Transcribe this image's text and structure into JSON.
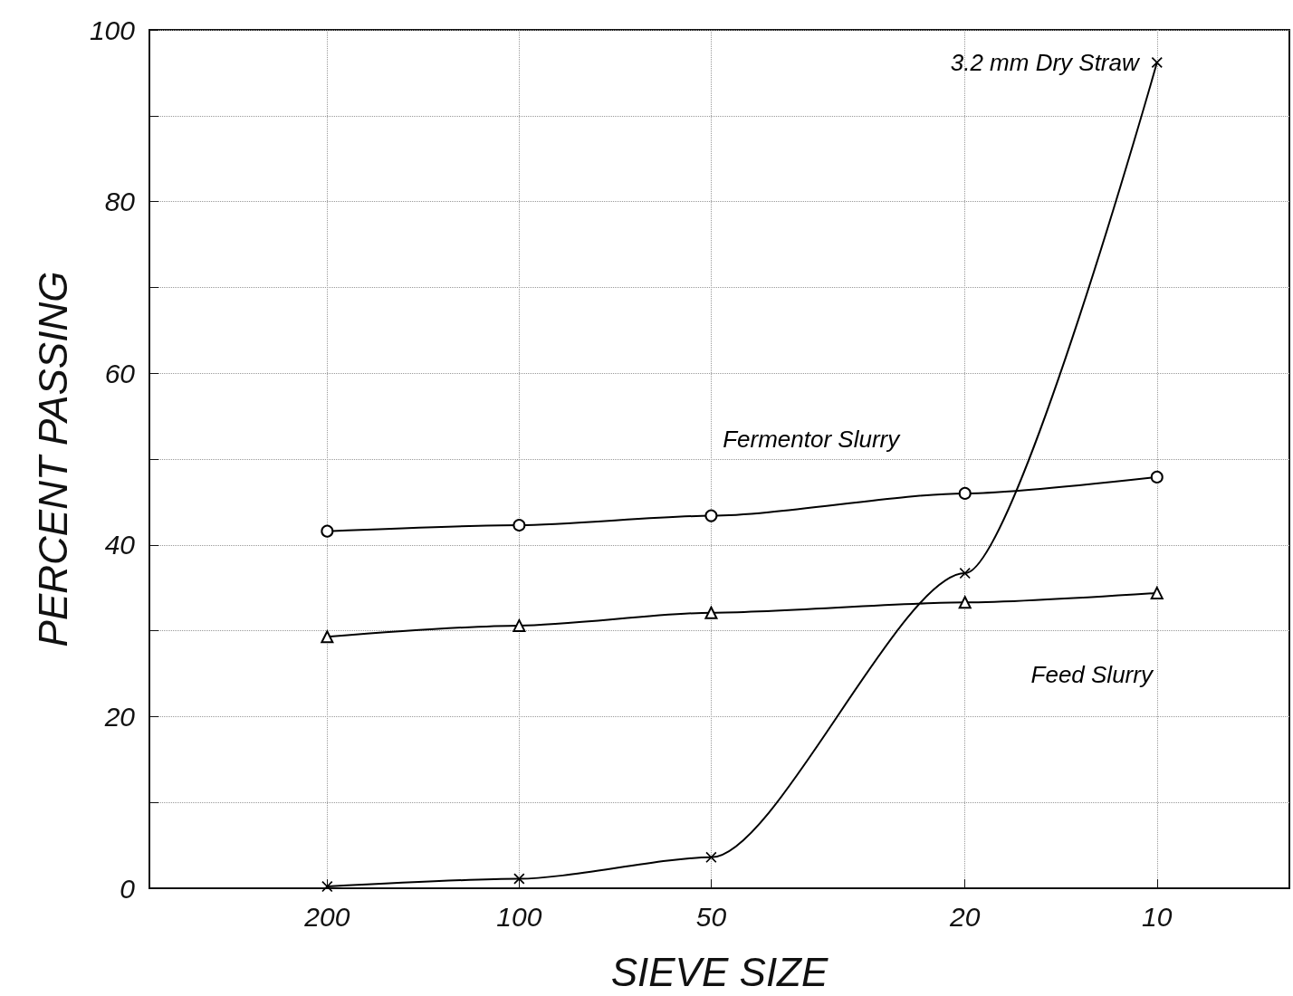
{
  "chart_data": {
    "type": "line",
    "xlabel": "SIEVE SIZE",
    "ylabel": "PERCENT PASSING",
    "log": "x",
    "x": [
      200,
      100,
      50,
      20,
      10
    ],
    "xlim": [
      380,
      6.2
    ],
    "xticks": [
      200,
      100,
      50,
      20,
      10
    ],
    "ylim": [
      0,
      100
    ],
    "yticks": [
      0,
      {
        "value": 10,
        "label": null
      },
      20,
      {
        "value": 30,
        "label": null
      },
      40,
      {
        "value": 50,
        "label": null
      },
      60,
      {
        "value": 70,
        "label": null
      },
      80,
      {
        "value": 90,
        "label": null
      },
      100
    ],
    "grid": true,
    "legend": false,
    "line_style": "solid",
    "series": [
      {
        "name": "3.2 mm Dry Straw",
        "color": "#000000",
        "marker": "cross",
        "values": [
          0.2,
          1.1,
          3.6,
          36.7,
          96.2
        ]
      },
      {
        "name": "Fermentor Slurry",
        "color": "#000000",
        "marker": "circle",
        "values": [
          41.6,
          42.3,
          43.4,
          46.0,
          47.9
        ]
      },
      {
        "name": "Feed Slurry",
        "color": "#000000",
        "marker": "triangle",
        "values": [
          29.3,
          30.6,
          32.1,
          33.3,
          34.4
        ]
      }
    ]
  }
}
